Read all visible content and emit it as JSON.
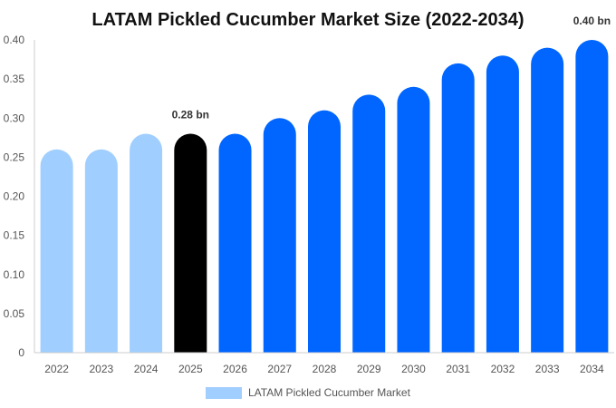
{
  "chart_data": {
    "type": "bar",
    "title": "LATAM Pickled Cucumber Market Size (2022-2034)",
    "xlabel": "",
    "ylabel": "",
    "categories": [
      "2022",
      "2023",
      "2024",
      "2025",
      "2026",
      "2027",
      "2028",
      "2029",
      "2030",
      "2031",
      "2032",
      "2033",
      "2034"
    ],
    "series": [
      {
        "name": "LATAM Pickled Cucumber Market",
        "values": [
          0.26,
          0.26,
          0.28,
          0.28,
          0.28,
          0.3,
          0.31,
          0.33,
          0.34,
          0.37,
          0.38,
          0.39,
          0.4
        ]
      }
    ],
    "ylim": [
      0,
      0.4
    ],
    "yticks": [
      "0",
      "0.05",
      "0.10",
      "0.15",
      "0.20",
      "0.25",
      "0.30",
      "0.35",
      "0.40"
    ],
    "ytick_values": [
      0,
      0.05,
      0.1,
      0.15,
      0.2,
      0.25,
      0.3,
      0.35,
      0.4
    ],
    "data_labels": [
      {
        "index": 3,
        "text": "0.28 bn"
      },
      {
        "index": 12,
        "text": "0.40 bn"
      }
    ],
    "grid": false,
    "legend_position": "bottom",
    "colors": {
      "historical": "#a0cfff",
      "current": "#000000",
      "forecast": "#0066ff",
      "legend_swatch": "#a0cfff"
    },
    "bar_color_groups": [
      "historical",
      "historical",
      "historical",
      "current",
      "forecast",
      "forecast",
      "forecast",
      "forecast",
      "forecast",
      "forecast",
      "forecast",
      "forecast",
      "forecast"
    ]
  }
}
